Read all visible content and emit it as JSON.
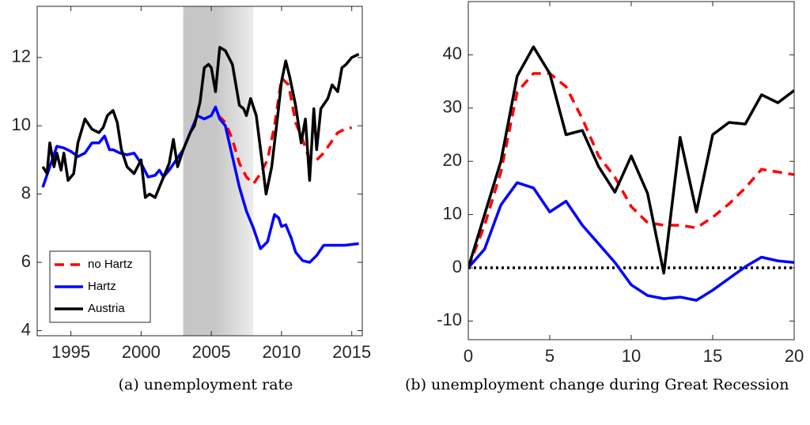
{
  "chart_data": [
    {
      "type": "line",
      "caption": "(a) unemployment rate",
      "xlim": [
        1992.6,
        2015.75
      ],
      "ylim": [
        3.85,
        13.5
      ],
      "xticks": [
        1995,
        2000,
        2005,
        2010,
        2015
      ],
      "yticks": [
        4,
        6,
        8,
        10,
        12
      ],
      "shade": [
        2003,
        2008
      ],
      "legend": "lower left",
      "series": [
        {
          "name": "no Hartz",
          "color": "#ff0000",
          "dashed": true,
          "x": [
            2005.5,
            2006,
            2006.5,
            2007,
            2007.5,
            2008,
            2008.5,
            2009,
            2009.5,
            2010,
            2010.5,
            2011,
            2011.5,
            2012,
            2012.5,
            2013,
            2013.5,
            2014,
            2014.5,
            2015
          ],
          "values": [
            10.3,
            10.1,
            9.6,
            8.9,
            8.5,
            8.3,
            8.6,
            9.0,
            10.0,
            11.4,
            11.2,
            10.1,
            9.6,
            9.0,
            9.0,
            9.2,
            9.5,
            9.8,
            9.9,
            9.95
          ]
        },
        {
          "name": "Hartz",
          "color": "#0000ff",
          "dashed": false,
          "x": [
            1993,
            1993.5,
            1994,
            1994.5,
            1995,
            1995.5,
            1996,
            1996.5,
            1997,
            1997.4,
            1997.75,
            1998,
            1998.5,
            1999,
            1999.5,
            2000,
            2000.5,
            2001,
            2001.3,
            2001.6,
            2002,
            2002.5,
            2003,
            2003.5,
            2004,
            2004.5,
            2005,
            2005.3,
            2005.6,
            2006,
            2006.5,
            2007,
            2007.5,
            2008,
            2008.5,
            2009,
            2009.5,
            2009.8,
            2010,
            2010.3,
            2010.7,
            2011,
            2011.5,
            2012,
            2012.5,
            2013,
            2013.5,
            2014,
            2014.5,
            2015.5
          ],
          "values": [
            8.2,
            8.8,
            9.4,
            9.35,
            9.25,
            9.1,
            9.2,
            9.5,
            9.5,
            9.7,
            9.3,
            9.3,
            9.2,
            9.15,
            9.2,
            8.9,
            8.5,
            8.55,
            8.7,
            8.5,
            8.7,
            9.0,
            9.3,
            9.8,
            10.3,
            10.2,
            10.3,
            10.55,
            10.2,
            10.0,
            9.1,
            8.2,
            7.5,
            7.0,
            6.4,
            6.6,
            7.4,
            7.3,
            7.05,
            7.1,
            6.7,
            6.3,
            6.05,
            6.0,
            6.2,
            6.5,
            6.5,
            6.5,
            6.5,
            6.55
          ]
        },
        {
          "name": "Austria",
          "color": "#000000",
          "dashed": false,
          "x": [
            1993,
            1993.3,
            1993.5,
            1993.8,
            1994,
            1994.3,
            1994.5,
            1994.8,
            1995.2,
            1995.5,
            1996,
            1996.5,
            1997,
            1997.3,
            1997.6,
            1998,
            1998.3,
            1998.6,
            1999,
            1999.5,
            2000,
            2000.3,
            2000.6,
            2001,
            2001.5,
            2002,
            2002.3,
            2002.6,
            2003,
            2003.5,
            2003.8,
            2004.2,
            2004.5,
            2004.8,
            2005,
            2005.3,
            2005.6,
            2006,
            2006.5,
            2007,
            2007.3,
            2007.5,
            2007.8,
            2008.2,
            2008.6,
            2008.9,
            2009.3,
            2009.7,
            2010,
            2010.3,
            2010.6,
            2011,
            2011.4,
            2011.7,
            2012,
            2012.3,
            2012.5,
            2012.8,
            2013.3,
            2013.6,
            2014,
            2014.3,
            2014.6,
            2015,
            2015.5
          ],
          "values": [
            8.8,
            8.6,
            9.5,
            8.8,
            9.2,
            8.7,
            9.2,
            8.4,
            8.6,
            9.5,
            10.2,
            9.9,
            9.8,
            9.95,
            10.3,
            10.45,
            10.1,
            9.3,
            8.8,
            8.6,
            9.0,
            7.9,
            8.0,
            7.9,
            8.4,
            8.9,
            9.6,
            8.8,
            9.3,
            9.8,
            10.0,
            10.7,
            11.7,
            11.8,
            11.7,
            11.0,
            12.3,
            12.2,
            11.8,
            10.6,
            10.5,
            10.3,
            10.8,
            10.3,
            9.0,
            8.0,
            8.8,
            10.2,
            11.3,
            11.9,
            11.4,
            10.6,
            9.5,
            10.2,
            8.4,
            10.5,
            9.3,
            10.5,
            10.8,
            11.2,
            11.0,
            11.7,
            11.8,
            12.0,
            12.1
          ]
        }
      ]
    },
    {
      "type": "line",
      "caption": "(b) unemployment change during Great Recession",
      "xlim": [
        0,
        20
      ],
      "ylim": [
        -13.5,
        50
      ],
      "xticks": [
        0,
        5,
        10,
        15,
        20
      ],
      "yticks": [
        -10,
        0,
        10,
        20,
        30,
        40
      ],
      "hline": 0,
      "series": [
        {
          "name": "no Hartz",
          "color": "#ff0000",
          "dashed": true,
          "x": [
            0,
            1,
            2,
            3,
            4,
            5,
            6,
            7,
            8,
            9,
            10,
            11,
            12,
            13,
            14,
            15,
            16,
            17,
            18,
            19,
            20
          ],
          "values": [
            0,
            8,
            18,
            33,
            36.5,
            36.5,
            34,
            28,
            21,
            17,
            11.5,
            8.5,
            8,
            8,
            7.5,
            9.5,
            12,
            15,
            18.5,
            18,
            17.5
          ]
        },
        {
          "name": "Hartz",
          "color": "#0000ff",
          "dashed": false,
          "x": [
            0,
            1,
            2,
            3,
            4,
            5,
            6,
            7,
            8,
            9,
            10,
            11,
            12,
            13,
            14,
            15,
            16,
            17,
            18,
            19,
            20
          ],
          "values": [
            0,
            3.5,
            11.8,
            16,
            15,
            10.5,
            12.5,
            8,
            4.5,
            1,
            -3.2,
            -5.2,
            -5.8,
            -5.5,
            -6.1,
            -4.2,
            -2,
            0.2,
            2,
            1.3,
            1.0
          ]
        },
        {
          "name": "Austria",
          "color": "#000000",
          "dashed": false,
          "x": [
            0,
            1,
            2,
            3,
            4,
            5,
            6,
            7,
            8,
            9,
            10,
            11,
            12,
            13,
            14,
            15,
            16,
            17,
            18,
            19,
            20
          ],
          "values": [
            0,
            10,
            20,
            36,
            41.5,
            36.5,
            25,
            25.8,
            19,
            14.2,
            21,
            14,
            -1,
            24.5,
            10.5,
            25,
            27.3,
            27,
            32.5,
            31,
            33.3
          ]
        }
      ]
    }
  ]
}
